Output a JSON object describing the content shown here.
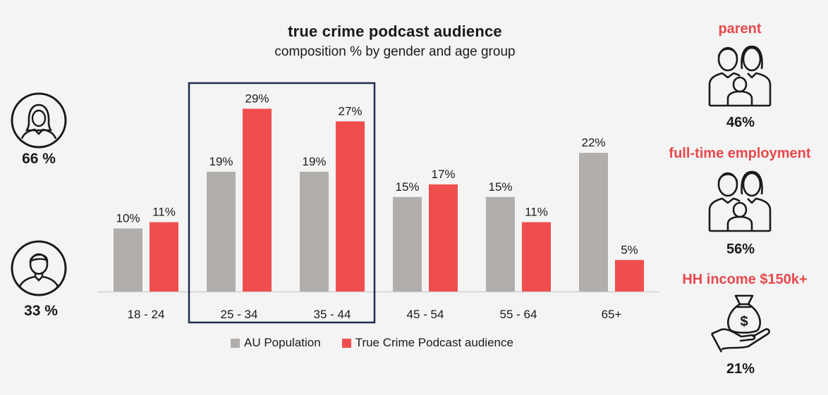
{
  "header": {
    "title": "true crime podcast audience",
    "subtitle": "composition % by gender and age group"
  },
  "gender": {
    "female_pct": "66 %",
    "male_pct": "33 %"
  },
  "stats": [
    {
      "label": "parent",
      "value": "46%",
      "icon": "family-icon"
    },
    {
      "label": "full-time employment",
      "value": "56%",
      "icon": "family-icon"
    },
    {
      "label": "HH income $150k+",
      "value": "21%",
      "icon": "money-bag-hand-icon"
    }
  ],
  "legend": {
    "au_label": "AU Population",
    "tc_label": "True Crime Podcast audience"
  },
  "colors": {
    "au": "#b2aeac",
    "tc": "#f04e4e",
    "highlight_border": "#1f2d4d",
    "accent_text": "#e8484c"
  },
  "chart_data": {
    "type": "bar",
    "title": "true crime podcast audience",
    "subtitle": "composition % by gender and age group",
    "categories": [
      "18 - 24",
      "25 - 34",
      "35 - 44",
      "45 - 54",
      "55 - 64",
      "65+"
    ],
    "series": [
      {
        "name": "AU Population",
        "values": [
          10,
          19,
          19,
          15,
          15,
          22
        ],
        "labels": [
          "10%",
          "19%",
          "19%",
          "15%",
          "15%",
          "22%"
        ]
      },
      {
        "name": "True Crime Podcast audience",
        "values": [
          11,
          29,
          27,
          17,
          11,
          5
        ],
        "labels": [
          "11%",
          "29%",
          "27%",
          "17%",
          "11%",
          "5%"
        ]
      }
    ],
    "highlighted_categories": [
      "25 - 34",
      "35 - 44"
    ],
    "ylim": [
      0,
      32
    ],
    "legend_position": "bottom",
    "grid": false
  }
}
